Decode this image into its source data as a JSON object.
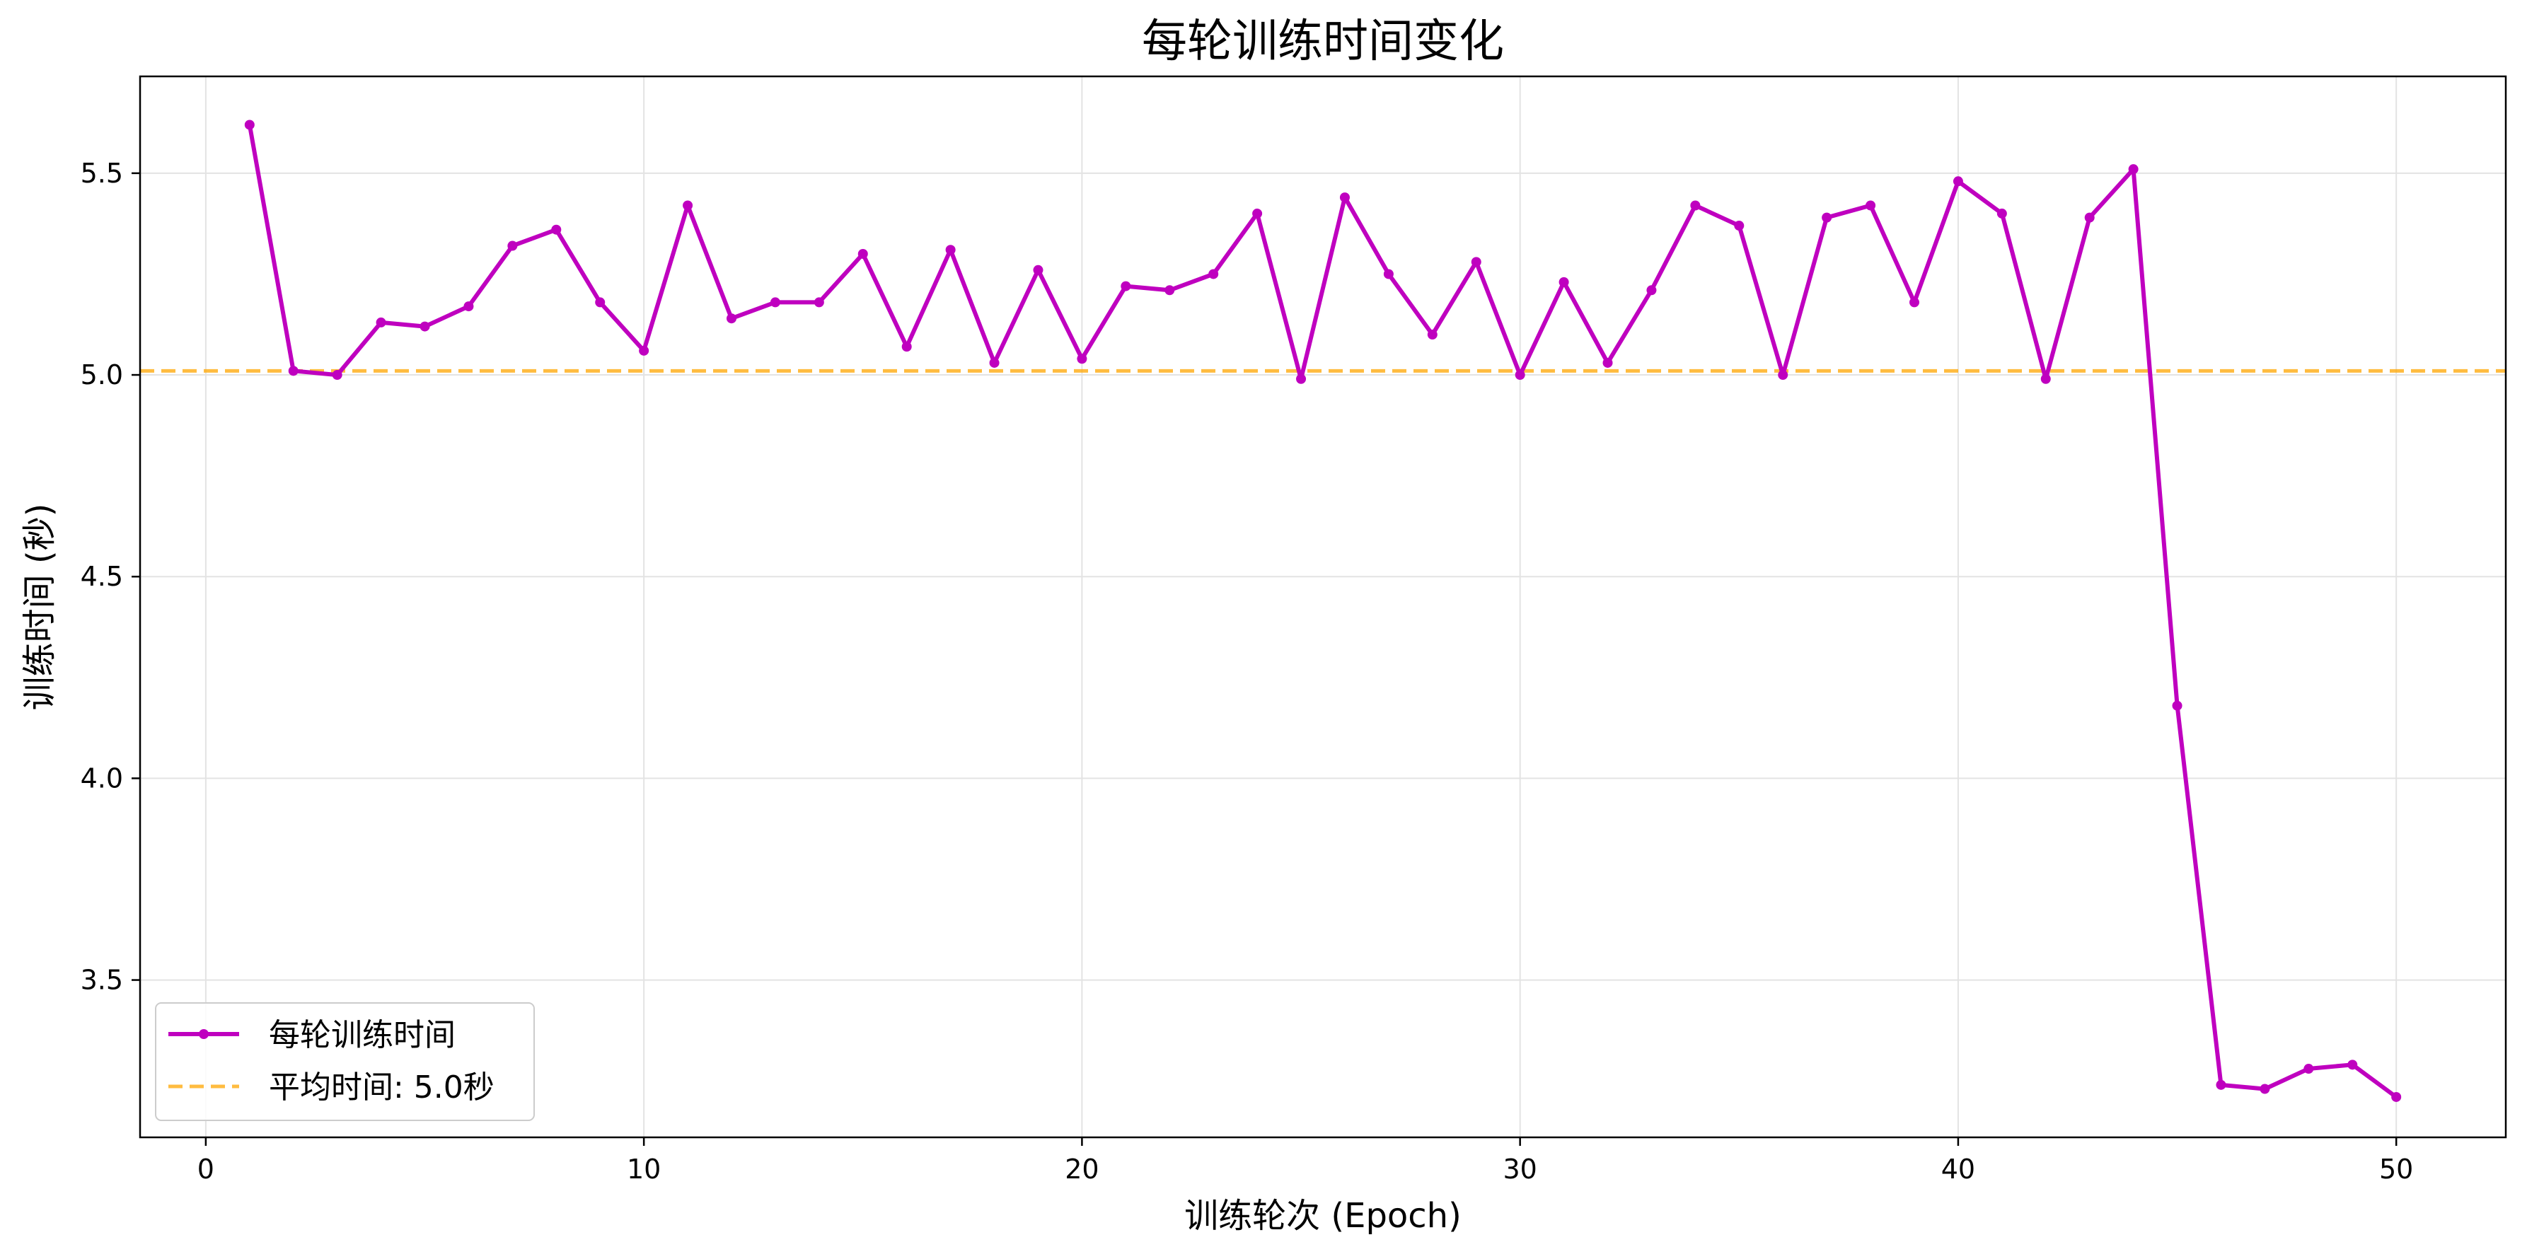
{
  "chart_data": {
    "type": "line",
    "title": "每轮训练时间变化",
    "xlabel": "训练轮次 (Epoch)",
    "ylabel": "训练时间 (秒)",
    "xlim": [
      -1.5,
      52.5
    ],
    "ylim": [
      3.11,
      5.74
    ],
    "xticks": [
      0,
      10,
      20,
      30,
      40,
      50
    ],
    "yticks": [
      3.5,
      4.0,
      4.5,
      5.0,
      5.5
    ],
    "xtick_labels": [
      "0",
      "10",
      "20",
      "30",
      "40",
      "50"
    ],
    "ytick_labels": [
      "3.5",
      "4.0",
      "4.5",
      "5.0",
      "5.5"
    ],
    "grid": true,
    "legend_position": "bottom-left",
    "series": [
      {
        "name": "每轮训练时间",
        "color": "#BF00BF",
        "marker": "circle",
        "x": [
          1,
          2,
          3,
          4,
          5,
          6,
          7,
          8,
          9,
          10,
          11,
          12,
          13,
          14,
          15,
          16,
          17,
          18,
          19,
          20,
          21,
          22,
          23,
          24,
          25,
          26,
          27,
          28,
          29,
          30,
          31,
          32,
          33,
          34,
          35,
          36,
          37,
          38,
          39,
          40,
          41,
          42,
          43,
          44,
          45,
          46,
          47,
          48,
          49,
          50
        ],
        "y": [
          5.62,
          5.01,
          5.0,
          5.13,
          5.12,
          5.17,
          5.32,
          5.36,
          5.18,
          5.06,
          5.42,
          5.14,
          5.18,
          5.18,
          5.3,
          5.07,
          5.31,
          5.03,
          5.26,
          5.04,
          5.22,
          5.21,
          5.25,
          5.4,
          4.99,
          5.44,
          5.25,
          5.1,
          5.28,
          5.0,
          5.23,
          5.03,
          5.21,
          5.42,
          5.37,
          5.0,
          5.39,
          5.42,
          5.18,
          5.48,
          5.4,
          4.99,
          5.39,
          5.51,
          4.18,
          3.24,
          3.23,
          3.28,
          3.29,
          3.21
        ]
      }
    ],
    "reference_lines": [
      {
        "name": "平均时间: 5.0秒",
        "color": "#FFA500",
        "style": "dashed",
        "y": 5.01
      }
    ]
  }
}
